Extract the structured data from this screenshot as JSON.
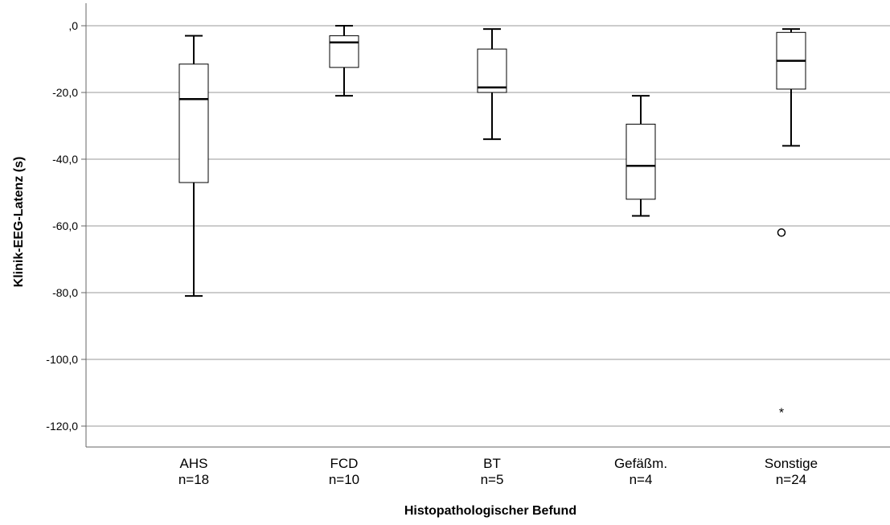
{
  "chart_data": {
    "type": "boxplot",
    "title": "",
    "xlabel": "Histopathologischer Befund",
    "ylabel": "Klinik-EEG-Latenz (s)",
    "ylim": [
      -126,
      6
    ],
    "yticks": [
      0,
      -20,
      -40,
      -60,
      -80,
      -100,
      -120
    ],
    "ytick_labels": [
      ",0",
      "-20,0",
      "-40,0",
      "-60,0",
      "-80,0",
      "-100,0",
      "-120,0"
    ],
    "grid": true,
    "categories": [
      {
        "name": "AHS",
        "n_label": "n=18",
        "whisker_low": -81,
        "q1": -47,
        "median": -22,
        "q3": -11.5,
        "whisker_high": -3,
        "outliers": [],
        "extremes": []
      },
      {
        "name": "FCD",
        "n_label": "n=10",
        "whisker_low": -21,
        "q1": -12.5,
        "median": -5,
        "q3": -3,
        "whisker_high": 0,
        "outliers": [],
        "extremes": []
      },
      {
        "name": "BT",
        "n_label": "n=5",
        "whisker_low": -34,
        "q1": -20,
        "median": -18.5,
        "q3": -7,
        "whisker_high": -1,
        "outliers": [],
        "extremes": []
      },
      {
        "name": "Gefäßm.",
        "n_label": "n=4",
        "whisker_low": -57,
        "q1": -52,
        "median": -42,
        "q3": -29.5,
        "whisker_high": -21,
        "outliers": [],
        "extremes": []
      },
      {
        "name": "Sonstige",
        "n_label": "n=24",
        "whisker_low": -36,
        "q1": -19,
        "median": -10.5,
        "q3": -2,
        "whisker_high": -1,
        "outliers": [
          -62
        ],
        "extremes": [
          -115
        ]
      }
    ],
    "extreme_marker": "*"
  }
}
